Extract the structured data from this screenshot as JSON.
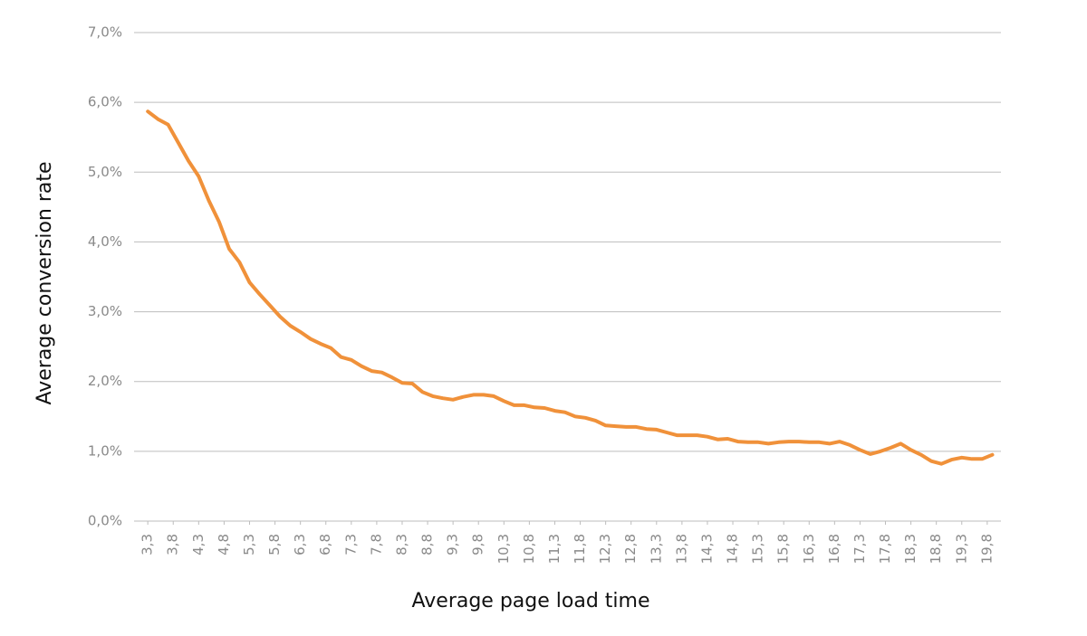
{
  "chart_data": {
    "type": "line",
    "x_label": "Average page load time",
    "y_label": "Average conversion rate",
    "x": [
      3.3,
      3.5,
      3.7,
      3.9,
      4.1,
      4.3,
      4.5,
      4.7,
      4.9,
      5.1,
      5.3,
      5.5,
      5.7,
      5.9,
      6.1,
      6.3,
      6.5,
      6.7,
      6.9,
      7.1,
      7.3,
      7.5,
      7.7,
      7.9,
      8.1,
      8.3,
      8.5,
      8.7,
      8.9,
      9.1,
      9.3,
      9.5,
      9.7,
      9.9,
      10.1,
      10.3,
      10.5,
      10.7,
      10.9,
      11.1,
      11.3,
      11.5,
      11.7,
      11.9,
      12.1,
      12.3,
      12.5,
      12.7,
      12.9,
      13.1,
      13.3,
      13.5,
      13.7,
      13.9,
      14.1,
      14.3,
      14.5,
      14.7,
      14.9,
      15.1,
      15.3,
      15.5,
      15.7,
      15.9,
      16.1,
      16.3,
      16.5,
      16.7,
      16.9,
      17.1,
      17.3,
      17.5,
      17.7,
      17.9,
      18.1,
      18.3,
      18.5,
      18.7,
      18.9,
      19.1,
      19.3,
      19.5,
      19.7,
      19.9
    ],
    "series": [
      {
        "name": "Average conversion rate",
        "color": "#f0913a",
        "values": [
          5.87,
          5.76,
          5.68,
          5.42,
          5.16,
          4.94,
          4.59,
          4.29,
          3.9,
          3.71,
          3.42,
          3.25,
          3.09,
          2.93,
          2.8,
          2.71,
          2.61,
          2.54,
          2.48,
          2.35,
          2.31,
          2.22,
          2.15,
          2.13,
          2.06,
          1.98,
          1.97,
          1.85,
          1.79,
          1.76,
          1.74,
          1.78,
          1.81,
          1.81,
          1.79,
          1.72,
          1.66,
          1.66,
          1.63,
          1.62,
          1.58,
          1.56,
          1.5,
          1.48,
          1.44,
          1.37,
          1.36,
          1.35,
          1.35,
          1.32,
          1.31,
          1.27,
          1.23,
          1.23,
          1.23,
          1.21,
          1.17,
          1.18,
          1.14,
          1.13,
          1.13,
          1.11,
          1.13,
          1.14,
          1.14,
          1.13,
          1.13,
          1.11,
          1.14,
          1.09,
          1.02,
          0.96,
          1.0,
          1.05,
          1.11,
          1.02,
          0.95,
          0.86,
          0.82,
          0.88,
          0.91,
          0.89,
          0.89,
          0.95
        ]
      }
    ],
    "xlim": [
      3.03,
      20.07
    ],
    "ylim": [
      0,
      7
    ],
    "xticks": [
      {
        "value": 3.3,
        "label": "3,3"
      },
      {
        "value": 3.8,
        "label": "3,8"
      },
      {
        "value": 4.3,
        "label": "4,3"
      },
      {
        "value": 4.8,
        "label": "4,8"
      },
      {
        "value": 5.3,
        "label": "5,3"
      },
      {
        "value": 5.8,
        "label": "5,8"
      },
      {
        "value": 6.3,
        "label": "6,3"
      },
      {
        "value": 6.8,
        "label": "6,8"
      },
      {
        "value": 7.3,
        "label": "7,3"
      },
      {
        "value": 7.8,
        "label": "7,8"
      },
      {
        "value": 8.3,
        "label": "8,3"
      },
      {
        "value": 8.8,
        "label": "8,8"
      },
      {
        "value": 9.3,
        "label": "9,3"
      },
      {
        "value": 9.8,
        "label": "9,8"
      },
      {
        "value": 10.3,
        "label": "10,3"
      },
      {
        "value": 10.8,
        "label": "10,8"
      },
      {
        "value": 11.3,
        "label": "11,3"
      },
      {
        "value": 11.8,
        "label": "11,8"
      },
      {
        "value": 12.3,
        "label": "12,3"
      },
      {
        "value": 12.8,
        "label": "12,8"
      },
      {
        "value": 13.3,
        "label": "13,3"
      },
      {
        "value": 13.8,
        "label": "13,8"
      },
      {
        "value": 14.3,
        "label": "14,3"
      },
      {
        "value": 14.8,
        "label": "14,8"
      },
      {
        "value": 15.3,
        "label": "15,3"
      },
      {
        "value": 15.8,
        "label": "15,8"
      },
      {
        "value": 16.3,
        "label": "16,3"
      },
      {
        "value": 16.8,
        "label": "16,8"
      },
      {
        "value": 17.3,
        "label": "17,3"
      },
      {
        "value": 17.8,
        "label": "17,8"
      },
      {
        "value": 18.3,
        "label": "18,3"
      },
      {
        "value": 18.8,
        "label": "18,8"
      },
      {
        "value": 19.3,
        "label": "19,3"
      },
      {
        "value": 19.8,
        "label": "19,8"
      }
    ],
    "yticks": [
      {
        "value": 0,
        "label": "0,0%"
      },
      {
        "value": 1,
        "label": "1,0%"
      },
      {
        "value": 2,
        "label": "2,0%"
      },
      {
        "value": 3,
        "label": "3,0%"
      },
      {
        "value": 4,
        "label": "4,0%"
      },
      {
        "value": 5,
        "label": "5,0%"
      },
      {
        "value": 6,
        "label": "6,0%"
      },
      {
        "value": 7,
        "label": "7,0%"
      }
    ],
    "grid": true
  }
}
